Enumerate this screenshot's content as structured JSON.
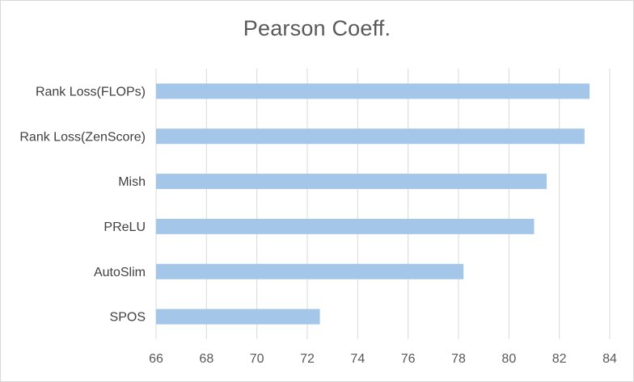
{
  "chart_data": {
    "type": "bar",
    "orientation": "horizontal",
    "title": "Pearson Coeff.",
    "xlabel": "",
    "ylabel": "",
    "categories": [
      "Rank Loss(FLOPs)",
      "Rank Loss(ZenScore)",
      "Mish",
      "PReLU",
      "AutoSlim",
      "SPOS"
    ],
    "values": [
      83.2,
      83.0,
      81.5,
      81.0,
      78.2,
      72.5
    ],
    "xlim": [
      66,
      84
    ],
    "xticks": [
      "66",
      "68",
      "70",
      "72",
      "74",
      "76",
      "78",
      "80",
      "82",
      "84"
    ],
    "grid": "vertical",
    "legend": "none",
    "colors": {
      "bar": "#a4c6e8",
      "grid": "#d9d9d9",
      "title": "#595959",
      "label": "#404040"
    }
  }
}
